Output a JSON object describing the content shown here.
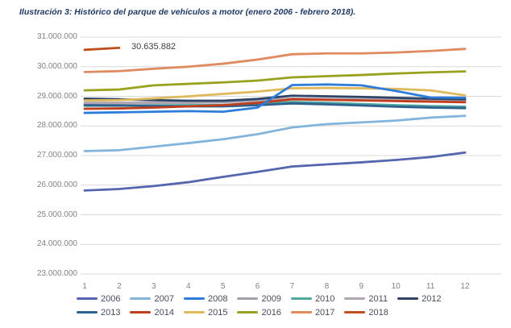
{
  "title": "Ilustración 3: Histórico del parque de vehículos a motor (enero 2006 - febrero 2018).",
  "chart_data": {
    "type": "line",
    "title": "Histórico del parque de vehículos a motor (enero 2006 - febrero 2018)",
    "xlabel": "",
    "ylabel": "",
    "x_categories": [
      "1",
      "2",
      "3",
      "4",
      "5",
      "6",
      "7",
      "8",
      "9",
      "10",
      "11",
      "12"
    ],
    "ylim": [
      23000000,
      31000000
    ],
    "grid": true,
    "legend_position": "bottom",
    "gridline_color": "#D9D9D9",
    "yticks": [
      {
        "label": "31.000.000",
        "value": 31000000
      },
      {
        "label": "30.000.000",
        "value": 30000000
      },
      {
        "label": "29.000.000",
        "value": 29000000
      },
      {
        "label": "28.000.000",
        "value": 28000000
      },
      {
        "label": "27.000.000",
        "value": 27000000
      },
      {
        "label": "26.000.000",
        "value": 26000000
      },
      {
        "label": "25.000.000",
        "value": 25000000
      },
      {
        "label": "24.000.000",
        "value": 24000000
      },
      {
        "label": "23.000.000",
        "value": 23000000
      }
    ],
    "annotation": {
      "text": "30.635.882",
      "series": "2018",
      "month": 2,
      "value": 30635882
    },
    "series": [
      {
        "name": "2006",
        "color": "#5466AE",
        "values": [
          25820000,
          25870000,
          25970000,
          26100000,
          26280000,
          26450000,
          26630000,
          26700000,
          26770000,
          26850000,
          26950000,
          27100000
        ]
      },
      {
        "name": "2007",
        "color": "#82B4DC",
        "values": [
          27150000,
          27180000,
          27300000,
          27420000,
          27550000,
          27720000,
          27950000,
          28060000,
          28120000,
          28180000,
          28280000,
          28340000
        ]
      },
      {
        "name": "2008",
        "color": "#2E7CD9",
        "values": [
          28440000,
          28460000,
          28480000,
          28500000,
          28480000,
          28620000,
          29380000,
          29400000,
          29370000,
          29180000,
          28960000,
          28950000
        ]
      },
      {
        "name": "2009",
        "color": "#9EA1AA",
        "values": [
          28760000,
          28760000,
          28770000,
          28780000,
          28800000,
          28840000,
          28920000,
          28900000,
          28880000,
          28860000,
          28850000,
          28840000
        ]
      },
      {
        "name": "2010",
        "color": "#50A8A0",
        "values": [
          28680000,
          28680000,
          28690000,
          28700000,
          28710000,
          28750000,
          28810000,
          28780000,
          28740000,
          28700000,
          28670000,
          28650000
        ]
      },
      {
        "name": "2011",
        "color": "#B1A6B4",
        "values": [
          28780000,
          28780000,
          28790000,
          28800000,
          28820000,
          28860000,
          28920000,
          28910000,
          28900000,
          28890000,
          28880000,
          28870000
        ]
      },
      {
        "name": "2012",
        "color": "#2E4466",
        "values": [
          28920000,
          28900000,
          28870000,
          28850000,
          28850000,
          28910000,
          29020000,
          29000000,
          28980000,
          28950000,
          28920000,
          28900000
        ]
      },
      {
        "name": "2013",
        "color": "#2F618F",
        "values": [
          28700000,
          28690000,
          28670000,
          28660000,
          28660000,
          28700000,
          28760000,
          28730000,
          28690000,
          28650000,
          28620000,
          28600000
        ]
      },
      {
        "name": "2014",
        "color": "#C23D1C",
        "values": [
          28580000,
          28590000,
          28620000,
          28660000,
          28700000,
          28780000,
          28900000,
          28880000,
          28860000,
          28840000,
          28820000,
          28800000
        ]
      },
      {
        "name": "2015",
        "color": "#DFBA5C",
        "values": [
          28860000,
          28870000,
          28930000,
          29000000,
          29080000,
          29160000,
          29270000,
          29280000,
          29270000,
          29250000,
          29200000,
          29030000
        ]
      },
      {
        "name": "2016",
        "color": "#99A21E",
        "values": [
          29200000,
          29230000,
          29370000,
          29420000,
          29470000,
          29530000,
          29640000,
          29680000,
          29720000,
          29770000,
          29810000,
          29840000
        ]
      },
      {
        "name": "2017",
        "color": "#E08A60",
        "values": [
          29820000,
          29850000,
          29930000,
          30000000,
          30100000,
          30240000,
          30420000,
          30450000,
          30450000,
          30480000,
          30530000,
          30600000
        ]
      },
      {
        "name": "2018",
        "color": "#BF4F1C",
        "values": [
          30570000,
          30635882
        ]
      }
    ]
  }
}
